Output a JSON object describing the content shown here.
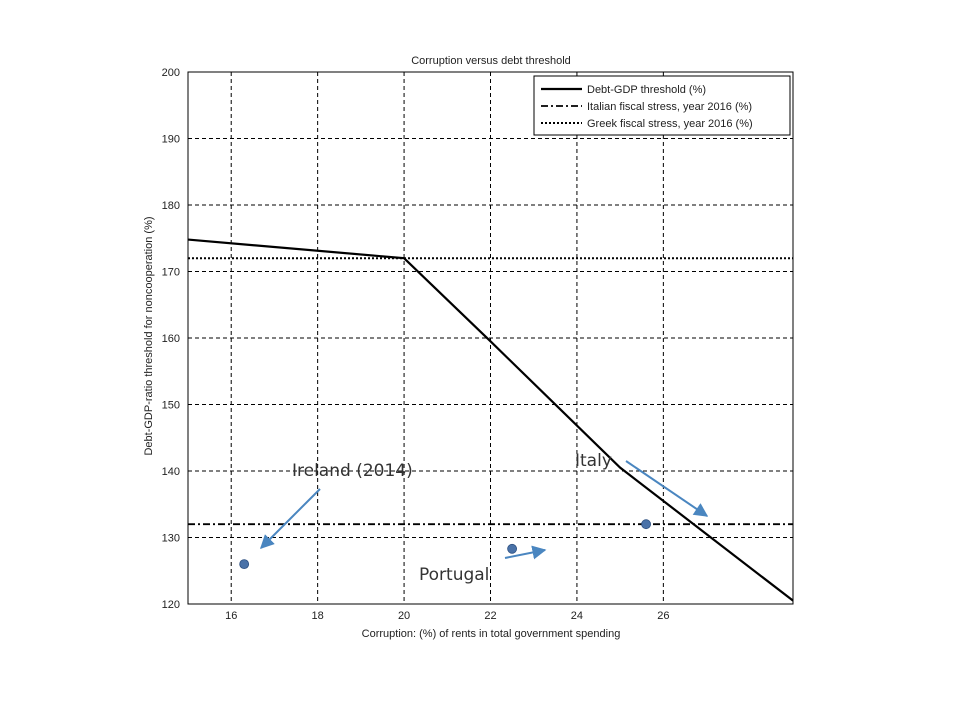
{
  "chart_data": {
    "type": "line",
    "title": "Corruption versus debt threshold",
    "xlabel": "Corruption: (%) of rents in total government spending",
    "ylabel": "Debt-GDP-ratio threshold for noncooperation (%)",
    "xlim": [
      15,
      29
    ],
    "ylim": [
      120,
      200
    ],
    "xticks": [
      16,
      18,
      20,
      22,
      24,
      26
    ],
    "yticks": [
      120,
      130,
      140,
      150,
      160,
      170,
      180,
      190,
      200
    ],
    "grid": true,
    "legend_position": "top-right",
    "series": [
      {
        "name": "Debt-GDP threshold (%)",
        "style": "solid",
        "color": "#000000",
        "x": [
          15,
          20,
          22,
          25,
          29
        ],
        "y": [
          174.8,
          172,
          159.5,
          140.5,
          120.5
        ]
      },
      {
        "name": "Italian fiscal stress, year 2016 (%)",
        "style": "dashdot",
        "color": "#000000",
        "x": [
          15,
          29
        ],
        "y": [
          132,
          132
        ]
      },
      {
        "name": "Greek fiscal stress, year 2016 (%)",
        "style": "dotted",
        "color": "#000000",
        "x": [
          15,
          29
        ],
        "y": [
          172,
          172
        ]
      }
    ],
    "points": [
      {
        "label": "Ireland (2014)",
        "x": 16.3,
        "y": 126
      },
      {
        "label": "Portugal",
        "x": 22.5,
        "y": 128.3
      },
      {
        "label": "Italy",
        "x": 25.6,
        "y": 132
      }
    ],
    "point_color": "#4a72a8",
    "arrow_color": "#4a86c0"
  }
}
